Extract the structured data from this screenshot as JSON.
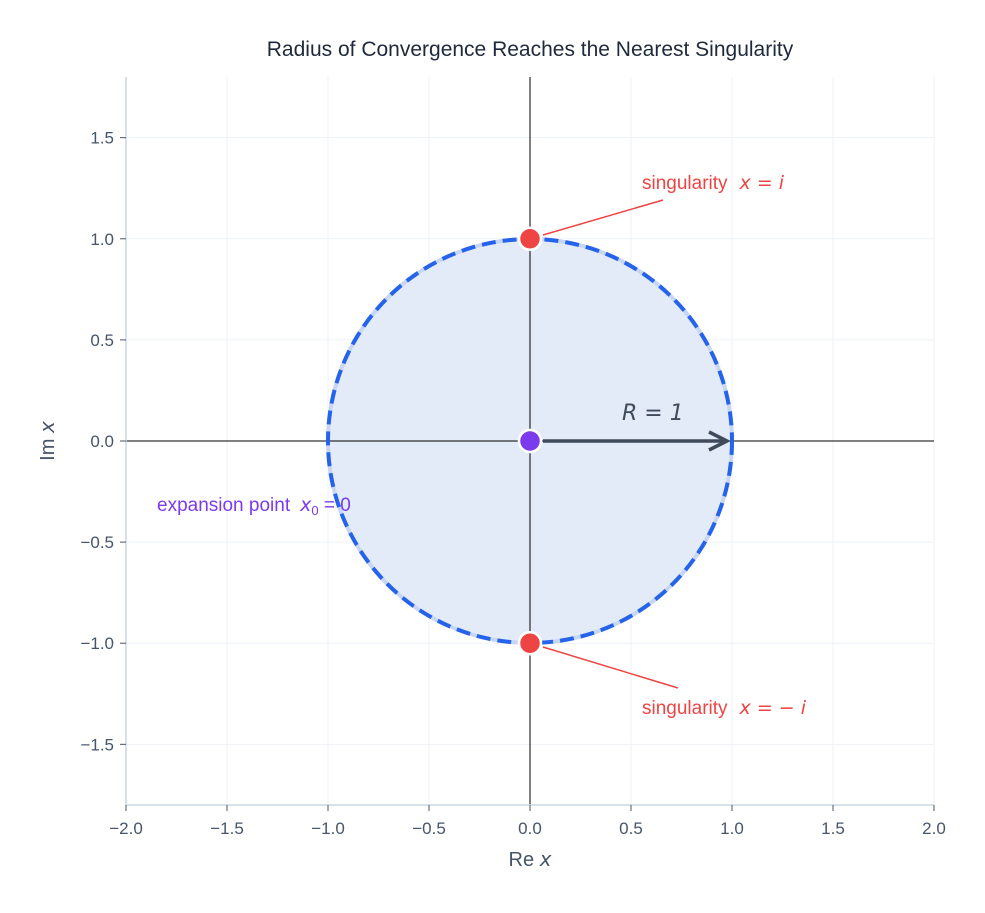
{
  "chart_data": {
    "type": "scatter",
    "title": "Radius of Convergence Reaches the Nearest Singularity",
    "xlabel": "Re x",
    "ylabel": "Im x",
    "xlim": [
      -2.0,
      2.0
    ],
    "ylim": [
      -1.8,
      1.8
    ],
    "xticks": [
      "−2.0",
      "−1.5",
      "−1.0",
      "−0.5",
      "0.0",
      "0.5",
      "1.0",
      "1.5",
      "2.0"
    ],
    "xtick_values": [
      -2,
      -1.5,
      -1,
      -0.5,
      0,
      0.5,
      1,
      1.5,
      2
    ],
    "yticks": [
      "−1.5",
      "−1.0",
      "−0.5",
      "0.0",
      "0.5",
      "1.0",
      "1.5"
    ],
    "ytick_values": [
      -1.5,
      -1,
      -0.5,
      0,
      0.5,
      1,
      1.5
    ],
    "grid": true,
    "circle": {
      "center": [
        0,
        0
      ],
      "radius": 1,
      "style": "dashed",
      "fill": "#e3ebf9",
      "stroke": "#2563eb"
    },
    "points": [
      {
        "name": "singularity-top",
        "x": 0,
        "y": 1,
        "color": "#ef4444"
      },
      {
        "name": "singularity-bottom",
        "x": 0,
        "y": -1,
        "color": "#ef4444"
      },
      {
        "name": "expansion-point",
        "x": 0,
        "y": 0,
        "color": "#7c3aed"
      }
    ],
    "arrow": {
      "from": [
        0,
        0
      ],
      "to": [
        1,
        0
      ],
      "color": "#3f4a5a"
    },
    "annotations": {
      "sing_top_text": "singularity",
      "sing_top_math": "x = i",
      "sing_bottom_text": "singularity",
      "sing_bottom_math": "x = − i",
      "expansion_text": "expansion point",
      "expansion_math_x": "x",
      "expansion_math_sub": "0",
      "expansion_math_rest": " = 0",
      "radius_label": "R = 1"
    },
    "xlabel_parts": {
      "re": "Re",
      "x": "x"
    },
    "ylabel_parts": {
      "im": "Im",
      "x": "x"
    }
  }
}
